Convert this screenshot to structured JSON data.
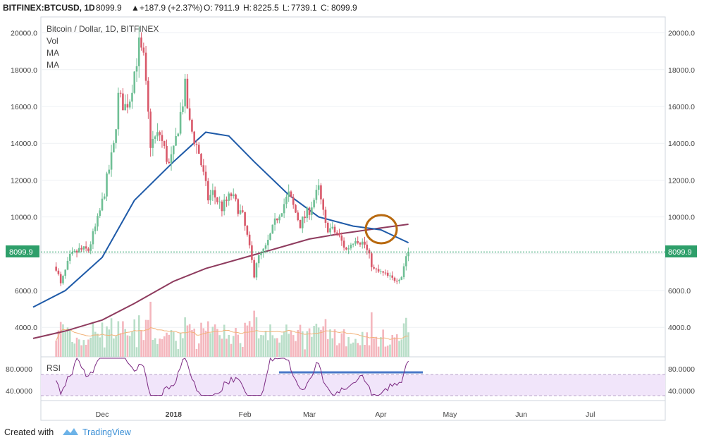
{
  "header": {
    "symbol": "BITFINEX:BTCUSD, 1D",
    "last": "8099.9",
    "change_arrow": "▲",
    "change": "+187.9 (+2.37%)",
    "o_label": "O:",
    "o_value": "7911.9",
    "h_label": "H:",
    "h_value": "8225.5",
    "l_label": "L:",
    "l_value": "7739.1",
    "c_label": "C:",
    "c_value": "8099.9"
  },
  "legend": {
    "title": "Bitcoin / Dollar, 1D, BITFINEX",
    "vol": "Vol",
    "ma1": "MA",
    "ma2": "MA"
  },
  "rsi": {
    "label": "RSI",
    "upper_tick": "80.0000",
    "lower_tick": "40.0000"
  },
  "price_tag": "8099.9",
  "footer": {
    "created_with": "Created with",
    "brand": "TradingView"
  },
  "colors": {
    "up": "#6fbf95",
    "down": "#d9596a",
    "vol_up": "#b9dec8",
    "vol_down": "#f4b6bd",
    "ma_fast": "#1e5aa8",
    "ma_slow": "#8e3b5e",
    "rsi_line": "#7c2a83",
    "rsi_band": "#f1e5fa",
    "highlight": "#b8690f",
    "resistance": "#4a78c8",
    "price_tag": "#2e9f6a"
  },
  "chart_data": {
    "type": "candlestick",
    "symbol": "BITFINEX:BTCUSD",
    "interval": "1D",
    "y_ticks": [
      4000,
      6000,
      8000,
      10000,
      12000,
      14000,
      16000,
      18000,
      20000
    ],
    "y_tick_labels": [
      "4000.0",
      "6000.0",
      "8000.0",
      "10000.0",
      "12000.0",
      "14000.0",
      "16000.0",
      "18000.0",
      "20000.0"
    ],
    "ylim": [
      2500,
      20800
    ],
    "x_tick_labels": [
      "Dec",
      "2018",
      "Feb",
      "Mar",
      "Apr",
      "May",
      "Jun",
      "Jul"
    ],
    "last_price": 8099.9,
    "price_path": [
      [
        "2017-11-11",
        7300
      ],
      [
        "2017-11-13",
        6300
      ],
      [
        "2017-11-17",
        7800
      ],
      [
        "2017-11-21",
        8200
      ],
      [
        "2017-11-25",
        8200
      ],
      [
        "2017-11-29",
        9800
      ],
      [
        "2017-12-01",
        10800
      ],
      [
        "2017-12-06",
        13800
      ],
      [
        "2017-12-08",
        16500
      ],
      [
        "2017-12-11",
        16000
      ],
      [
        "2017-12-13",
        16500
      ],
      [
        "2017-12-15",
        17900
      ],
      [
        "2017-12-17",
        19300
      ],
      [
        "2017-12-19",
        18500
      ],
      [
        "2017-12-22",
        14000
      ],
      [
        "2017-12-26",
        14500
      ],
      [
        "2017-12-30",
        12800
      ],
      [
        "2018-01-01",
        13500
      ],
      [
        "2018-01-06",
        17000
      ],
      [
        "2018-01-08",
        15000
      ],
      [
        "2018-01-12",
        13500
      ],
      [
        "2018-01-16",
        11000
      ],
      [
        "2018-01-18",
        11300
      ],
      [
        "2018-01-22",
        10500
      ],
      [
        "2018-01-26",
        11200
      ],
      [
        "2018-01-31",
        10000
      ],
      [
        "2018-02-02",
        8900
      ],
      [
        "2018-02-05",
        6900
      ],
      [
        "2018-02-06",
        7600
      ],
      [
        "2018-02-10",
        8300
      ],
      [
        "2018-02-15",
        10000
      ],
      [
        "2018-02-20",
        11200
      ],
      [
        "2018-02-25",
        9600
      ],
      [
        "2018-03-01",
        10400
      ],
      [
        "2018-03-05",
        11500
      ],
      [
        "2018-03-08",
        9500
      ],
      [
        "2018-03-13",
        9100
      ],
      [
        "2018-03-17",
        8200
      ],
      [
        "2018-03-21",
        8900
      ],
      [
        "2018-03-25",
        8500
      ],
      [
        "2018-03-29",
        7100
      ],
      [
        "2018-04-02",
        6900
      ],
      [
        "2018-04-06",
        6600
      ],
      [
        "2018-04-10",
        6800
      ],
      [
        "2018-04-12",
        7900
      ],
      [
        "2018-04-13",
        8099.9
      ]
    ],
    "ma_fast_path": [
      [
        "2017-11-01",
        5100
      ],
      [
        "2017-11-15",
        6000
      ],
      [
        "2017-12-01",
        7800
      ],
      [
        "2017-12-15",
        10900
      ],
      [
        "2018-01-01",
        13000
      ],
      [
        "2018-01-15",
        14600
      ],
      [
        "2018-01-25",
        14400
      ],
      [
        "2018-02-05",
        13000
      ],
      [
        "2018-02-20",
        11200
      ],
      [
        "2018-03-05",
        10000
      ],
      [
        "2018-03-20",
        9500
      ],
      [
        "2018-04-01",
        9300
      ],
      [
        "2018-04-13",
        8600
      ]
    ],
    "ma_slow_path": [
      [
        "2017-11-01",
        3400
      ],
      [
        "2017-11-15",
        3800
      ],
      [
        "2017-12-01",
        4400
      ],
      [
        "2017-12-15",
        5300
      ],
      [
        "2018-01-01",
        6500
      ],
      [
        "2018-01-15",
        7200
      ],
      [
        "2018-02-01",
        7800
      ],
      [
        "2018-02-15",
        8300
      ],
      [
        "2018-03-01",
        8800
      ],
      [
        "2018-03-15",
        9100
      ],
      [
        "2018-04-01",
        9400
      ],
      [
        "2018-04-13",
        9600
      ]
    ],
    "rsi_ticks": [
      40,
      80
    ],
    "rsi_resistance_level": 71
  }
}
